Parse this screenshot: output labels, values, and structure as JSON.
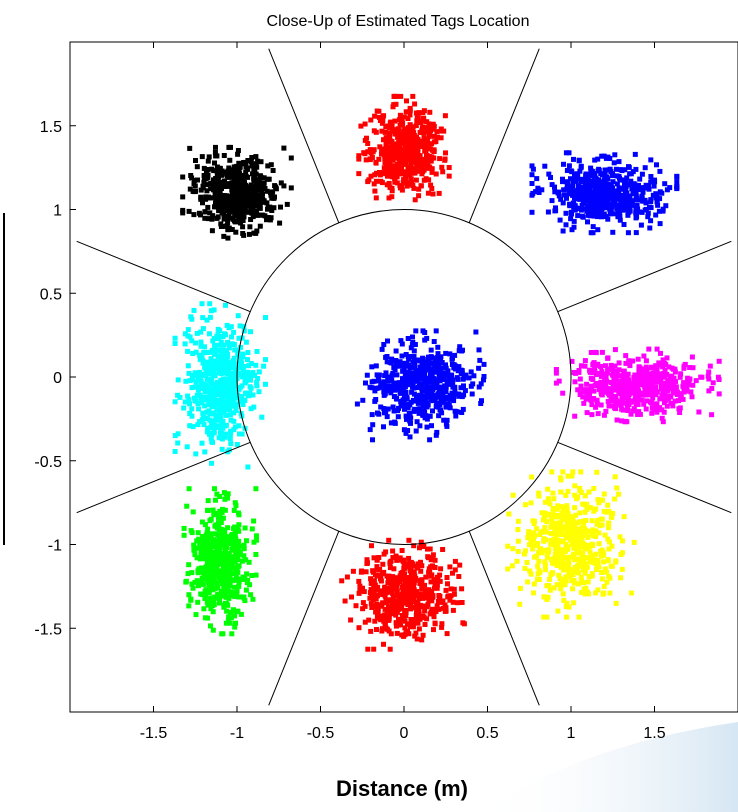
{
  "chart_data": {
    "type": "scatter",
    "title": "Close-Up of Estimated Tags Location",
    "xlabel": "Distance (m)",
    "ylabel": "",
    "xlim": [
      -2.0,
      2.0
    ],
    "ylim": [
      -2.0,
      2.0
    ],
    "x_ticks": [
      -1.5,
      -1,
      -0.5,
      0,
      0.5,
      1,
      1.5
    ],
    "x_tick_labels": [
      "-1.5",
      "-1",
      "-0.5",
      "0",
      "0.5",
      "1",
      "1.5"
    ],
    "y_ticks": [
      -1.5,
      -1,
      -0.5,
      0,
      0.5,
      1,
      1.5
    ],
    "y_tick_labels": [
      "-1.5",
      "-1",
      "-0.5",
      "0",
      "0.5",
      "1",
      "1.5"
    ],
    "grid": false,
    "legend": "none",
    "reference_circle": {
      "center": [
        0,
        0
      ],
      "radius": 1
    },
    "sector_lines": [
      {
        "from": [
          -0.39,
          0.92
        ],
        "to": [
          -0.81,
          1.96
        ]
      },
      {
        "from": [
          0.39,
          0.92
        ],
        "to": [
          0.81,
          1.96
        ]
      },
      {
        "from": [
          0.92,
          0.39
        ],
        "to": [
          1.96,
          0.81
        ]
      },
      {
        "from": [
          0.92,
          -0.39
        ],
        "to": [
          1.96,
          -0.81
        ]
      },
      {
        "from": [
          0.39,
          -0.92
        ],
        "to": [
          0.81,
          -1.96
        ]
      },
      {
        "from": [
          -0.39,
          -0.92
        ],
        "to": [
          -0.81,
          -1.96
        ]
      },
      {
        "from": [
          -0.92,
          -0.39
        ],
        "to": [
          -1.96,
          -0.81
        ]
      },
      {
        "from": [
          -0.92,
          0.39
        ],
        "to": [
          -1.96,
          0.81
        ]
      }
    ],
    "series": [
      {
        "color": "#000000",
        "center": [
          -1.0,
          1.1
        ],
        "spread": [
          0.3,
          0.25
        ]
      },
      {
        "color": "#ff0000",
        "center": [
          0.0,
          1.35
        ],
        "spread": [
          0.25,
          0.3
        ]
      },
      {
        "color": "#0000ff",
        "center": [
          1.2,
          1.1
        ],
        "spread": [
          0.4,
          0.22
        ]
      },
      {
        "color": "#00ffff",
        "center": [
          -1.1,
          -0.05
        ],
        "spread": [
          0.25,
          0.45
        ]
      },
      {
        "color": "#0000ff",
        "center": [
          0.1,
          -0.05
        ],
        "spread": [
          0.35,
          0.3
        ]
      },
      {
        "color": "#ff00ff",
        "center": [
          1.4,
          -0.05
        ],
        "spread": [
          0.45,
          0.2
        ]
      },
      {
        "color": "#00ff00",
        "center": [
          -1.1,
          -1.1
        ],
        "spread": [
          0.2,
          0.4
        ]
      },
      {
        "color": "#ff0000",
        "center": [
          0.0,
          -1.3
        ],
        "spread": [
          0.35,
          0.3
        ]
      },
      {
        "color": "#ffff00",
        "center": [
          1.0,
          -1.0
        ],
        "spread": [
          0.35,
          0.4
        ]
      }
    ]
  }
}
